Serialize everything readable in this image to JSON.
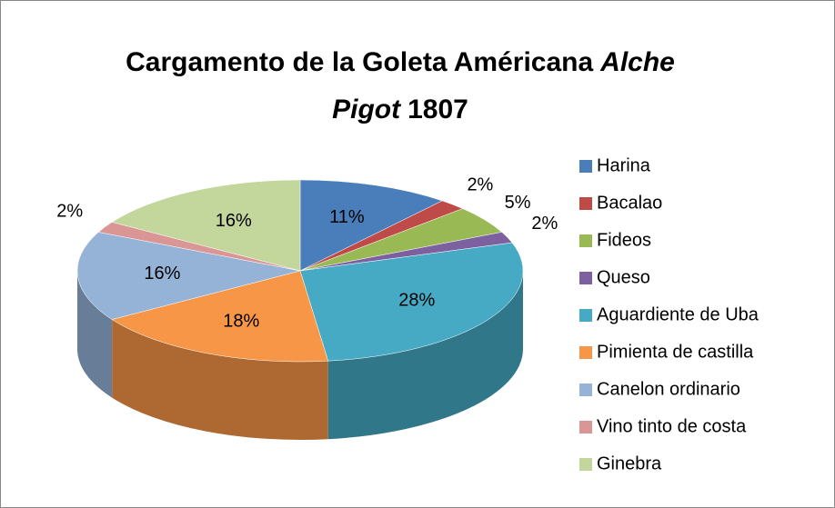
{
  "chart_data": {
    "type": "pie3d",
    "title": [
      {
        "text": "Cargamento de la Goleta Américana",
        "italic": false
      },
      {
        "text": "Alche",
        "italic": true
      },
      {
        "text": "Pigot",
        "italic": true
      },
      {
        "text": "1807",
        "italic": false
      }
    ],
    "categories": [
      "Harina",
      "Bacalao",
      "Fideos",
      "Queso",
      "Aguardiente de Uba",
      "Pimienta de castilla",
      "Canelon ordinario",
      "Vino tinto de costa",
      "Ginebra"
    ],
    "values": [
      11,
      2,
      5,
      2,
      28,
      18,
      16,
      2,
      16
    ],
    "value_labels": [
      "11%",
      "2%",
      "5%",
      "2%",
      "28%",
      "18%",
      "16%",
      "2%",
      "16%"
    ],
    "colors": [
      "#4a7ebb",
      "#be4b48",
      "#98b954",
      "#7d60a0",
      "#46aac5",
      "#f79646",
      "#95b3d7",
      "#d99694",
      "#c3d69b"
    ],
    "legend": "right"
  }
}
